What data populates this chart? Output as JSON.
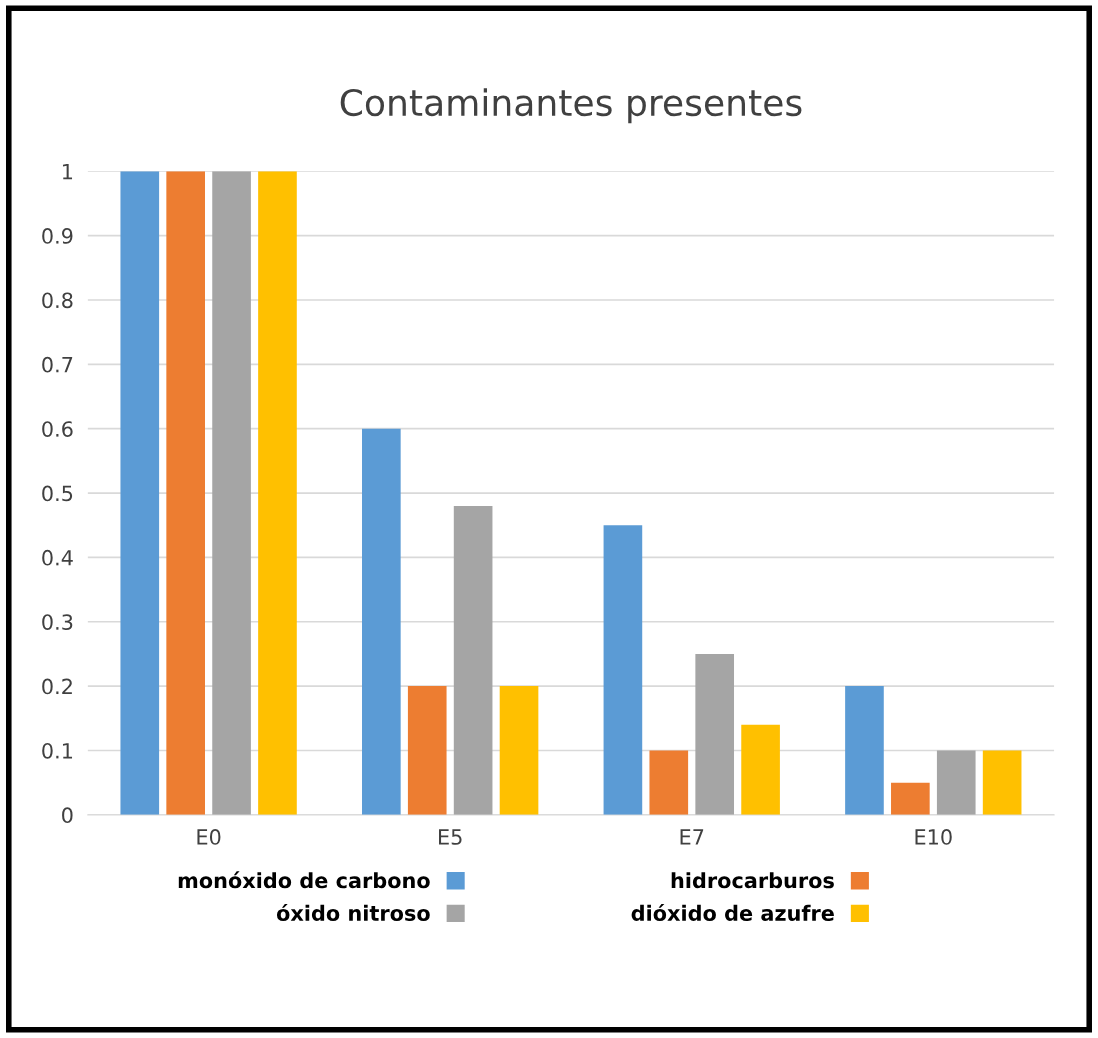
{
  "chart_data": {
    "type": "bar",
    "title": "Contaminantes presentes",
    "categories": [
      "E0",
      "E5",
      "E7",
      "E10"
    ],
    "series": [
      {
        "name": "monóxido de carbono",
        "color": "#5b9bd5",
        "values": [
          1,
          0.6,
          0.45,
          0.2
        ]
      },
      {
        "name": "hidrocarburos",
        "color": "#ed7d31",
        "values": [
          1,
          0.2,
          0.1,
          0.05
        ]
      },
      {
        "name": "óxido nitroso",
        "color": "#a5a5a5",
        "values": [
          1,
          0.48,
          0.25,
          0.1
        ]
      },
      {
        "name": "dióxido de azufre",
        "color": "#ffc000",
        "values": [
          1,
          0.2,
          0.14,
          0.1
        ]
      }
    ],
    "ylim": [
      0,
      1
    ],
    "yticks": [
      0,
      0.1,
      0.2,
      0.3,
      0.4,
      0.5,
      0.6,
      0.7,
      0.8,
      0.9,
      1
    ],
    "grid": "y",
    "legend": "bottom"
  }
}
